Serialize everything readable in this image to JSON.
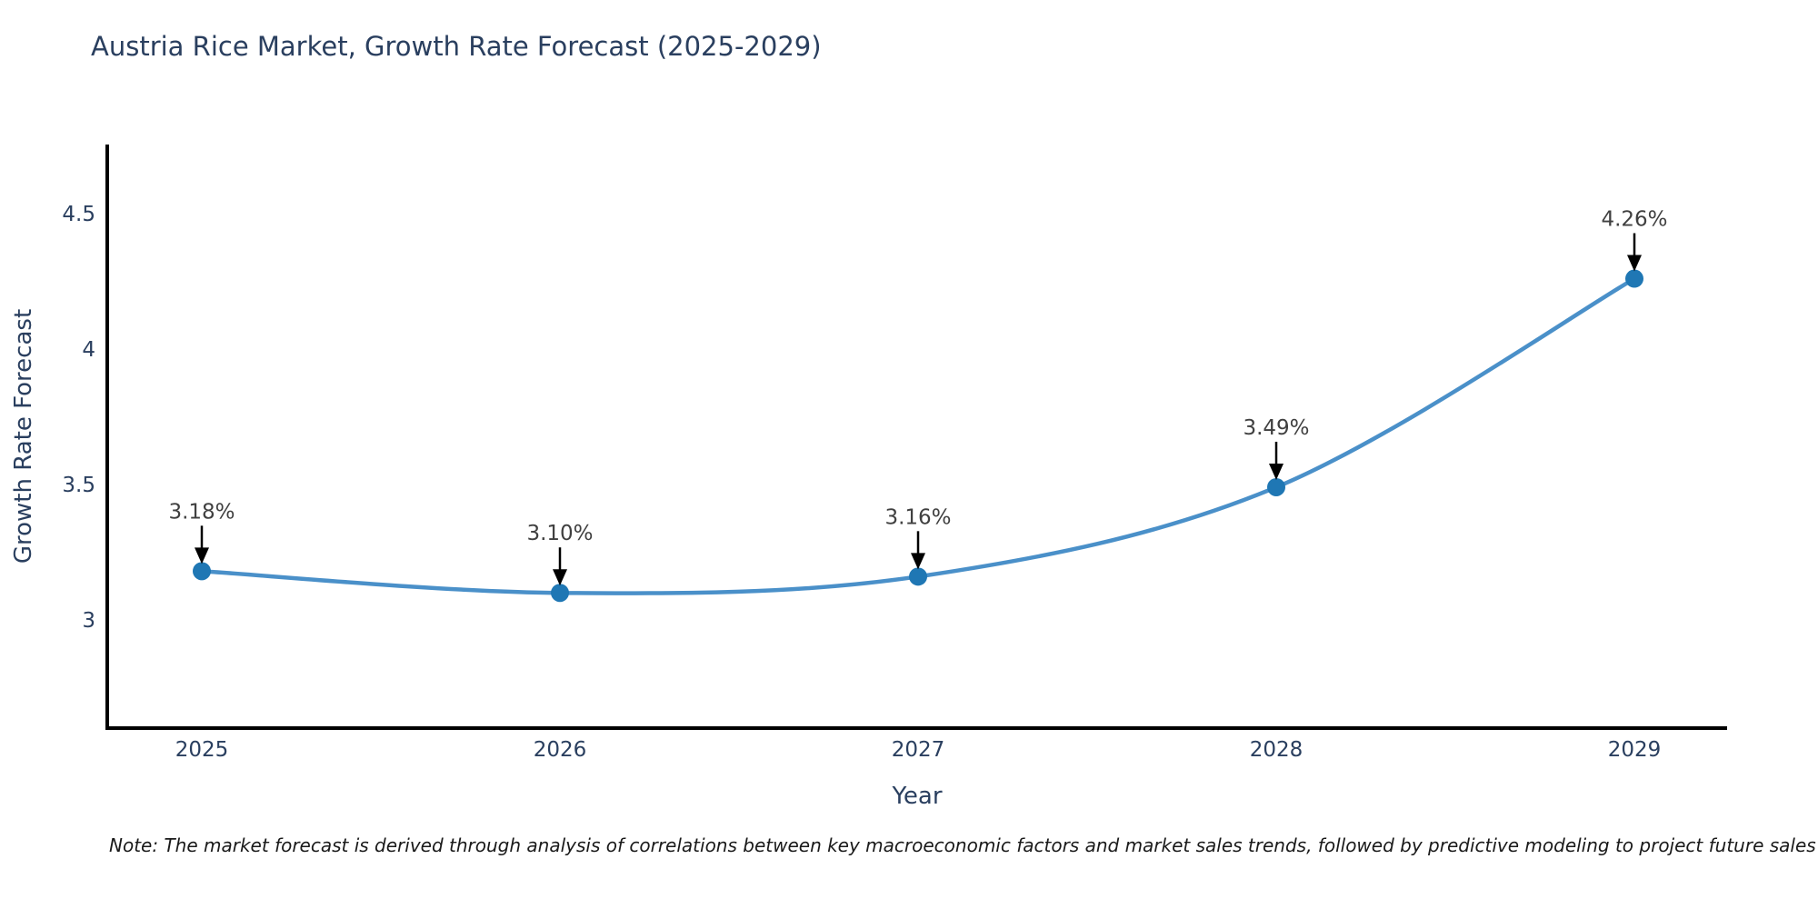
{
  "title": "Austria Rice Market, Growth Rate Forecast (2025-2029)",
  "note": "Note: The market forecast is derived through analysis of correlations between key macroeconomic factors and market sales trends, followed by predictive modeling to project future sales",
  "chart_data": {
    "type": "line",
    "line_shape": "spline",
    "x": [
      "2025",
      "2026",
      "2027",
      "2028",
      "2029"
    ],
    "values": [
      3.18,
      3.1,
      3.16,
      3.49,
      4.26
    ],
    "point_labels": [
      "3.18%",
      "3.10%",
      "3.16%",
      "3.49%",
      "4.26%"
    ],
    "title": "Austria Rice Market, Growth Rate Forecast (2025-2029)",
    "xlabel": "Year",
    "ylabel": "Growth Rate Forecast",
    "yticks": [
      3,
      3.5,
      4,
      4.5
    ],
    "ytick_labels": [
      "3",
      "3.5",
      "4",
      "4.5"
    ],
    "ylim": [
      2.6,
      4.76
    ],
    "grid": false,
    "legend": false,
    "colors": {
      "line": "#4a90c9",
      "marker": "#1f77b4",
      "axis": "#000000",
      "tick_text": "#2a3f5f",
      "axis_title_text": "#2a3f5f",
      "annotation_text": "#404040",
      "annotation_arrow": "#000000",
      "title_text": "#2a3f5f",
      "background": "#ffffff"
    }
  }
}
